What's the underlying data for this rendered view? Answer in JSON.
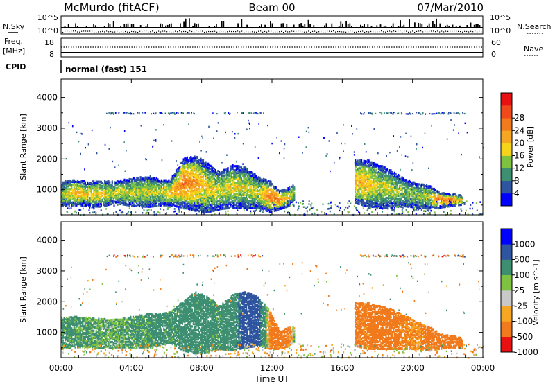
{
  "header": {
    "station": "McMurdo (fitACF)",
    "beam": "Beam 00",
    "date": "07/Mar/2010"
  },
  "noise_panel": {
    "left_label": "N.Sky",
    "right_label": "N.Search",
    "left_ticks": [
      "10^5",
      "10^0"
    ],
    "right_ticks": [
      "10^5",
      "10^0"
    ]
  },
  "freq_panel": {
    "left_label_1": "Freq.",
    "left_label_2": "[MHz]",
    "right_label": "Nave",
    "left_ticks": [
      "18",
      "8"
    ],
    "right_ticks": [
      "60",
      "0"
    ]
  },
  "cpid": {
    "label": "CPID",
    "value": "normal (fast) 151"
  },
  "x_axis": {
    "label": "Time UT",
    "ticks": [
      "00:00",
      "04:00",
      "08:00",
      "12:00",
      "16:00",
      "20:00",
      "00:00"
    ]
  },
  "colors": {
    "power": [
      "#0000ff",
      "#2f55a0",
      "#3e8f72",
      "#7fc241",
      "#f5d419",
      "#f5a623",
      "#f07a1c",
      "#f04a1c",
      "#e81010"
    ],
    "velocity": [
      "#e81010",
      "#f07a1c",
      "#f5a623",
      "#c8c8c8",
      "#7fc241",
      "#3e8f72",
      "#2f55a0",
      "#0000ff"
    ]
  },
  "chart_data": [
    {
      "type": "heatmap",
      "title": "",
      "ylabel": "Slant Range [km]",
      "xlabel": "",
      "ylim": [
        180,
        4600
      ],
      "yticks": [
        1000,
        2000,
        3000,
        4000
      ],
      "xlim_hours": [
        0,
        24
      ],
      "colorbar": {
        "label": "Power [dB]",
        "ticks": [
          "4",
          "8",
          "12",
          "16",
          "20",
          "24",
          "28"
        ]
      },
      "echo_bands": [
        {
          "t": [
            0.0,
            0.7,
            1.5,
            2.3,
            3.0,
            4.0,
            5.0,
            5.7,
            6.2,
            6.9,
            7.6,
            8.3,
            9.0,
            9.7,
            10.5,
            11.2,
            11.9,
            12.4,
            12.9,
            13.3
          ],
          "r": [
            900,
            950,
            900,
            900,
            950,
            960,
            980,
            950,
            950,
            1250,
            1250,
            1100,
            1000,
            1150,
            1100,
            950,
            800,
            700,
            800,
            950
          ],
          "w": [
            400,
            420,
            400,
            420,
            350,
            450,
            500,
            420,
            420,
            800,
            900,
            800,
            600,
            700,
            650,
            500,
            500,
            300,
            300,
            260
          ],
          "p": [
            14,
            20,
            18,
            18,
            16,
            16,
            16,
            16,
            18,
            24,
            22,
            18,
            16,
            18,
            16,
            16,
            24,
            24,
            18,
            12
          ]
        },
        {
          "t": [
            16.7,
            17.4,
            18.1,
            18.8,
            19.5,
            20.2,
            20.9,
            21.5,
            22.1,
            22.8
          ],
          "r": [
            1300,
            1250,
            1150,
            1050,
            950,
            850,
            800,
            700,
            700,
            700
          ],
          "w": [
            700,
            750,
            700,
            600,
            450,
            400,
            380,
            250,
            200,
            150
          ],
          "p": [
            20,
            20,
            16,
            16,
            14,
            14,
            16,
            24,
            24,
            18
          ]
        }
      ]
    },
    {
      "type": "heatmap",
      "title": "",
      "ylabel": "Slant Range [km]",
      "xlabel": "Time UT",
      "ylim": [
        180,
        4600
      ],
      "yticks": [
        1000,
        2000,
        3000,
        4000
      ],
      "xlim_hours": [
        0,
        24
      ],
      "colorbar": {
        "label": "Velocity [m s^-1]",
        "ticks": [
          "1000",
          "500",
          "100",
          "25",
          "-25",
          "-100",
          "-500",
          "-1000"
        ]
      },
      "echo_bands": [
        {
          "t": [
            0.0,
            0.7,
            1.5,
            2.3,
            3.0,
            4.0,
            5.0,
            5.7,
            6.2,
            6.9,
            7.6,
            8.3,
            9.0,
            9.7,
            10.5,
            11.2,
            11.9,
            12.4,
            12.9,
            13.3
          ],
          "r": [
            1000,
            1050,
            1050,
            1000,
            1000,
            1050,
            1100,
            1150,
            1200,
            1250,
            1350,
            1300,
            1200,
            1350,
            1450,
            1400,
            1100,
            800,
            900,
            1000
          ],
          "w": [
            500,
            500,
            480,
            480,
            450,
            500,
            550,
            500,
            500,
            800,
            1000,
            900,
            700,
            900,
            900,
            800,
            600,
            300,
            300,
            250
          ],
          "v": [
            150,
            150,
            150,
            100,
            100,
            150,
            150,
            200,
            150,
            200,
            250,
            200,
            150,
            300,
            700,
            600,
            -200,
            -300,
            -150,
            50
          ]
        },
        {
          "t": [
            16.7,
            17.4,
            18.1,
            18.8,
            19.5,
            20.2,
            20.9,
            21.5,
            22.1,
            22.8
          ],
          "r": [
            1300,
            1250,
            1200,
            1150,
            1050,
            950,
            850,
            750,
            750,
            700
          ],
          "w": [
            700,
            750,
            700,
            650,
            550,
            450,
            400,
            250,
            200,
            150
          ],
          "v": [
            -200,
            -150,
            -300,
            -200,
            -150,
            -100,
            -200,
            -300,
            -400,
            -250
          ]
        }
      ]
    }
  ]
}
